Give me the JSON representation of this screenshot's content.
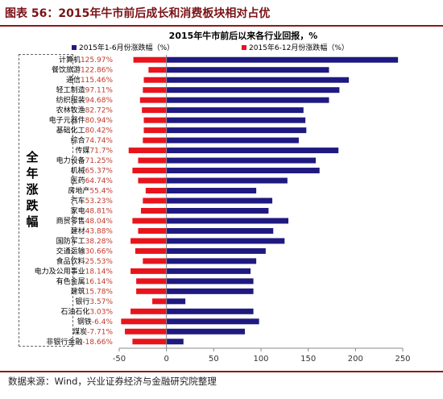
{
  "header_title": "图表 56：2015年牛市前后成长和消费板块相对占优",
  "side_label": [
    "全",
    "年",
    "涨",
    "跌",
    "幅"
  ],
  "footer_source": "数据来源：Wind，兴业证券经济与金融研究院整理",
  "colors": {
    "h1": "#1f1a80",
    "h2": "#e8141c",
    "accent": "#8b1a1a"
  },
  "chart_data": {
    "type": "bar",
    "orientation": "horizontal",
    "title": "2015年牛市前后以来各行业回报，%",
    "xlim": [
      -50,
      250
    ],
    "xticks": [
      -50,
      0,
      50,
      100,
      150,
      200,
      250
    ],
    "legend_placement": "top",
    "categories": [
      "计算机",
      "餐饮旅游",
      "通信",
      "轻工制造",
      "纺织服装",
      "农林牧渔",
      "电子元器件",
      "基础化工",
      "综合",
      "传媒",
      "电力设备",
      "机械",
      "医药",
      "房地产",
      "汽车",
      "家电",
      "商贸零售",
      "建材",
      "国防军工",
      "交通运输",
      "食品饮料",
      "电力及公用事业",
      "有色金属",
      "建筑",
      "银行",
      "石油石化",
      "钢铁",
      "煤炭",
      "非银行金融"
    ],
    "annual": [
      "125.97%",
      "122.86%",
      "115.46%",
      "97.11%",
      "94.68%",
      "82.72%",
      "80.94%",
      "80.42%",
      "74.74%",
      "71.7%",
      "71.25%",
      "65.37%",
      "64.74%",
      "55.4%",
      "53.23%",
      "48.81%",
      "48.04%",
      "43.88%",
      "38.28%",
      "30.66%",
      "25.53%",
      "18.14%",
      "16.14%",
      "15.78%",
      "3.57%",
      "3.03%",
      "-6.4%",
      "-7.71%",
      "-18.66%"
    ],
    "series": [
      {
        "name": "2015年1-6月份涨跌幅（%）",
        "values": [
          245,
          172,
          193,
          183,
          172,
          145,
          147,
          148,
          140,
          182,
          158,
          162,
          128,
          95,
          112,
          108,
          129,
          113,
          125,
          105,
          95,
          89,
          92,
          92,
          20,
          92,
          98,
          83,
          18
        ]
      },
      {
        "name": "2015年6-12月份涨跌幅（%）",
        "values": [
          -35,
          -19,
          -24,
          -25,
          -28,
          -26,
          -24,
          -24,
          -25,
          -40,
          -30,
          -36,
          -30,
          -22,
          -25,
          -27,
          -36,
          -30,
          -38,
          -33,
          -25,
          -38,
          -32,
          -32,
          -15,
          -38,
          -48,
          -44,
          -36
        ]
      }
    ]
  }
}
